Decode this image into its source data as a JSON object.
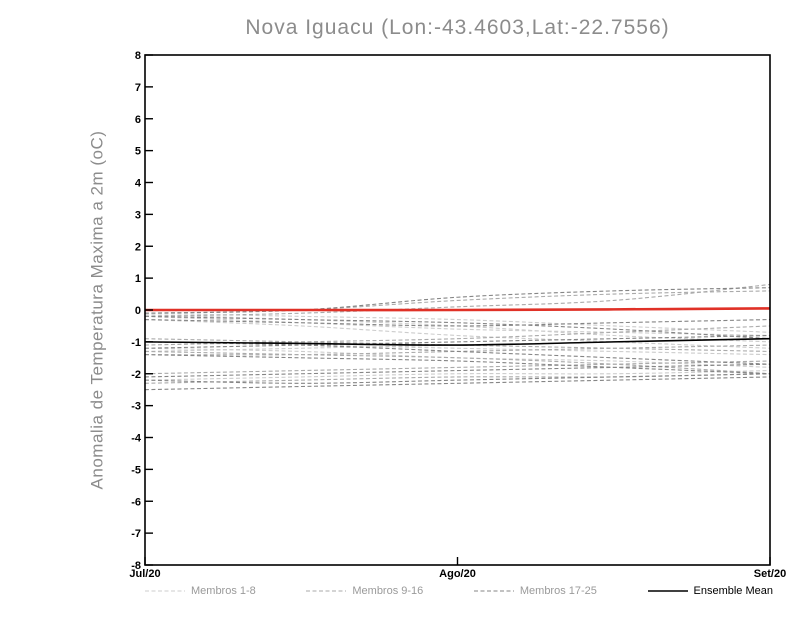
{
  "title": "Nova Iguacu (Lon:-43.4603,Lat:-22.7556)",
  "ylabel": "Anomalia de Temperatura Maxima a 2m (oC)",
  "legend": [
    {
      "label": "Membros 1-8",
      "color": "#cccccc",
      "dashed": true
    },
    {
      "label": "Membros 9-16",
      "color": "#aaaaaa",
      "dashed": true
    },
    {
      "label": "Membros 17-25",
      "color": "#858585",
      "dashed": true
    },
    {
      "label": "Ensemble Mean",
      "color": "#000000",
      "dashed": false
    }
  ],
  "chart_data": {
    "type": "line",
    "title": "Nova Iguacu (Lon:-43.4603,Lat:-22.7556)",
    "xlabel": "",
    "ylabel": "Anomalia de Temperatura Maxima a 2m (oC)",
    "x_tick_labels": [
      "Jul/20",
      "Ago/20",
      "Set/20"
    ],
    "x_tick_positions": [
      0,
      0.5,
      1
    ],
    "ylim": [
      -8,
      8
    ],
    "y_tick_step": 1,
    "grid": false,
    "legend_position": "bottom",
    "x": [
      0,
      0.25,
      0.5,
      0.75,
      1
    ],
    "series": [
      {
        "name": "member-1",
        "group": 0,
        "values": [
          -0.1,
          -0.2,
          -0.3,
          -0.5,
          -0.7
        ]
      },
      {
        "name": "member-2",
        "group": 0,
        "values": [
          -0.15,
          -0.3,
          -0.5,
          -0.8,
          -1.0
        ]
      },
      {
        "name": "member-3",
        "group": 0,
        "values": [
          -0.2,
          -0.4,
          -0.6,
          -0.7,
          -0.8
        ]
      },
      {
        "name": "member-4",
        "group": 0,
        "values": [
          -1.0,
          -1.1,
          -1.2,
          -1.3,
          -1.4
        ]
      },
      {
        "name": "member-5",
        "group": 0,
        "values": [
          -1.3,
          -1.2,
          -1.1,
          -1.0,
          -0.9
        ]
      },
      {
        "name": "member-6",
        "group": 0,
        "values": [
          -2.2,
          -2.1,
          -2.0,
          -2.0,
          -1.9
        ]
      },
      {
        "name": "member-7",
        "group": 0,
        "values": [
          -0.3,
          -0.5,
          -0.8,
          -1.0,
          -1.2
        ]
      },
      {
        "name": "member-8",
        "group": 0,
        "values": [
          -1.2,
          -1.3,
          -1.5,
          -1.6,
          -1.8
        ]
      },
      {
        "name": "member-9",
        "group": 1,
        "values": [
          -0.1,
          0.0,
          0.3,
          0.5,
          0.6
        ]
      },
      {
        "name": "member-10",
        "group": 1,
        "values": [
          -0.2,
          -0.1,
          0.1,
          0.3,
          0.8
        ]
      },
      {
        "name": "member-11",
        "group": 1,
        "values": [
          -1.1,
          -1.0,
          -0.9,
          -0.7,
          -0.5
        ]
      },
      {
        "name": "member-12",
        "group": 1,
        "values": [
          -1.4,
          -1.4,
          -1.3,
          -1.2,
          -1.1
        ]
      },
      {
        "name": "member-13",
        "group": 1,
        "values": [
          -2.0,
          -1.9,
          -1.8,
          -1.7,
          -1.6
        ]
      },
      {
        "name": "member-14",
        "group": 1,
        "values": [
          -2.3,
          -2.2,
          -2.1,
          -2.1,
          -2.0
        ]
      },
      {
        "name": "member-15",
        "group": 1,
        "values": [
          -0.9,
          -1.0,
          -1.1,
          -1.2,
          -1.3
        ]
      },
      {
        "name": "member-16",
        "group": 1,
        "values": [
          -1.3,
          -1.4,
          -1.5,
          -1.7,
          -2.0
        ]
      },
      {
        "name": "member-17",
        "group": 2,
        "values": [
          -0.1,
          0.0,
          0.4,
          0.6,
          0.7
        ]
      },
      {
        "name": "member-18",
        "group": 2,
        "values": [
          -0.3,
          -0.4,
          -0.5,
          -0.4,
          -0.3
        ]
      },
      {
        "name": "member-19",
        "group": 2,
        "values": [
          -1.0,
          -1.1,
          -1.3,
          -1.5,
          -1.7
        ]
      },
      {
        "name": "member-20",
        "group": 2,
        "values": [
          -1.2,
          -1.1,
          -1.0,
          -0.9,
          -0.8
        ]
      },
      {
        "name": "member-21",
        "group": 2,
        "values": [
          -2.1,
          -2.0,
          -1.9,
          -1.8,
          -1.7
        ]
      },
      {
        "name": "member-22",
        "group": 2,
        "values": [
          -2.5,
          -2.4,
          -2.3,
          -2.2,
          -2.1
        ]
      },
      {
        "name": "member-23",
        "group": 2,
        "values": [
          -0.2,
          -0.3,
          -0.4,
          -0.6,
          -0.9
        ]
      },
      {
        "name": "member-24",
        "group": 2,
        "values": [
          -1.4,
          -1.5,
          -1.6,
          -1.8,
          -2.0
        ]
      },
      {
        "name": "member-25",
        "group": 2,
        "values": [
          -2.2,
          -2.3,
          -2.2,
          -2.1,
          -2.0
        ]
      }
    ],
    "ensemble_mean": {
      "name": "ensemble-mean",
      "color": "#000000",
      "values": [
        -1.0,
        -1.05,
        -1.1,
        -1.0,
        -0.9
      ]
    },
    "reference_line": {
      "name": "zero-anomaly-reference",
      "color": "#e03127",
      "values": [
        0.0,
        0.0,
        0.0,
        0.02,
        0.05
      ]
    }
  }
}
